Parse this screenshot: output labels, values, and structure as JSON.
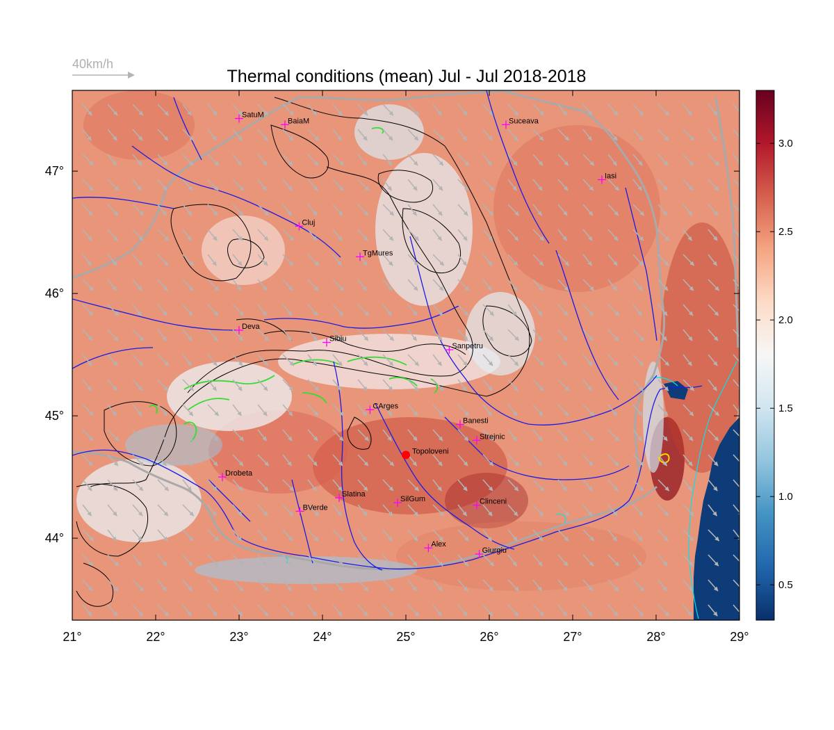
{
  "title": "Thermal conditions (mean) Jul - Jul  2018-2018",
  "wind_reference": {
    "label": "40km/h",
    "color": "#b0b0b0"
  },
  "map": {
    "lon_range": [
      21,
      29
    ],
    "lat_range": [
      43.33,
      47.66
    ],
    "lon_ticks": [
      21,
      22,
      23,
      24,
      25,
      26,
      27,
      28,
      29
    ],
    "lat_ticks": [
      44,
      45,
      46,
      47
    ],
    "lon_tick_labels": [
      "21°",
      "22°",
      "23°",
      "24°",
      "25°",
      "26°",
      "27°",
      "28°",
      "29°"
    ],
    "lat_tick_labels": [
      "44°",
      "45°",
      "46°",
      "47°"
    ]
  },
  "colorbar": {
    "range": [
      0.3,
      3.3
    ],
    "ticks": [
      0.5,
      1.0,
      1.5,
      2.0,
      2.5,
      3.0
    ],
    "tick_labels": [
      "0.5",
      "1.0",
      "1.5",
      "2.0",
      "2.5",
      "3.0"
    ],
    "colors": [
      "#08306b",
      "#2166ac",
      "#4393c3",
      "#92c5de",
      "#d1e5f0",
      "#f7f7f7",
      "#fddbc7",
      "#f4a582",
      "#d6604d",
      "#b2182b",
      "#67001f"
    ]
  },
  "cities": [
    {
      "name": "SatuM",
      "lon": 23.0,
      "lat": 47.43
    },
    {
      "name": "BaiaM",
      "lon": 23.55,
      "lat": 47.38
    },
    {
      "name": "Suceava",
      "lon": 26.2,
      "lat": 47.38
    },
    {
      "name": "Iasi",
      "lon": 27.35,
      "lat": 46.93
    },
    {
      "name": "Cluj",
      "lon": 23.72,
      "lat": 46.55
    },
    {
      "name": "TgMures",
      "lon": 24.45,
      "lat": 46.3
    },
    {
      "name": "Deva",
      "lon": 23.0,
      "lat": 45.7
    },
    {
      "name": "Sibiu",
      "lon": 24.05,
      "lat": 45.6
    },
    {
      "name": "Sanpetru",
      "lon": 25.52,
      "lat": 45.54
    },
    {
      "name": "CArges",
      "lon": 24.57,
      "lat": 45.05
    },
    {
      "name": "Banesti",
      "lon": 25.65,
      "lat": 44.93
    },
    {
      "name": "Strejnic",
      "lon": 25.85,
      "lat": 44.8
    },
    {
      "name": "Drobeta",
      "lon": 22.8,
      "lat": 44.5
    },
    {
      "name": "Slatina",
      "lon": 24.2,
      "lat": 44.33
    },
    {
      "name": "SilGum",
      "lon": 24.9,
      "lat": 44.29
    },
    {
      "name": "Clinceni",
      "lon": 25.85,
      "lat": 44.27
    },
    {
      "name": "BVerde",
      "lon": 23.73,
      "lat": 44.22
    },
    {
      "name": "Alex",
      "lon": 25.27,
      "lat": 43.92
    },
    {
      "name": "Giurgiu",
      "lon": 25.88,
      "lat": 43.87
    }
  ],
  "highlight_station": {
    "name": "Topoloveni",
    "lon": 25.0,
    "lat": 44.68,
    "color": "#ff0000"
  },
  "colors": {
    "city_marker": "#ff00ff",
    "rivers": "#1a1ae6",
    "borders": "#a9a9a9",
    "contours": "#000000",
    "high_elevation_contour": "#33dd33",
    "coastline": "#00e5ee",
    "wind_arrows": "#b4b4b4"
  }
}
